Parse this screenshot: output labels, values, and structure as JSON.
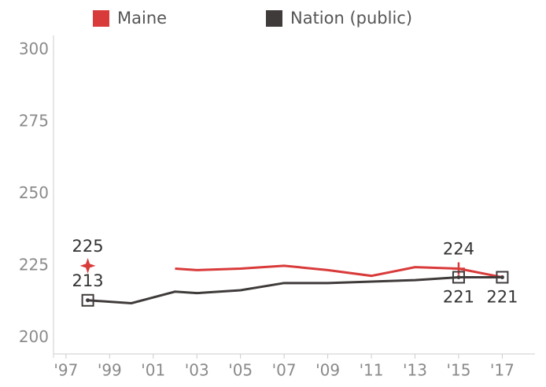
{
  "chart_data": {
    "type": "line",
    "x": [
      1998,
      2000,
      2002,
      2003,
      2005,
      2007,
      2009,
      2011,
      2013,
      2015,
      2017
    ],
    "series": [
      {
        "name": "Maine",
        "color": "#d93a3a",
        "values": [
          225,
          null,
          224,
          223.5,
          224,
          225,
          223.5,
          221.5,
          224.5,
          224,
          221
        ],
        "value_labels": [
          "225",
          null,
          null,
          null,
          null,
          null,
          null,
          null,
          null,
          "224",
          null
        ]
      },
      {
        "name": "Nation (public)",
        "color": "#403b3b",
        "values": [
          213,
          212,
          216,
          215.5,
          216.5,
          219,
          219,
          219.5,
          220,
          221,
          221
        ],
        "value_labels": [
          "213",
          null,
          null,
          null,
          null,
          null,
          null,
          null,
          null,
          "221",
          "221"
        ]
      }
    ],
    "xlim": [
      1996.5,
      2018.5
    ],
    "xticks": [
      {
        "value": 1997,
        "label": "'97"
      },
      {
        "value": 1999,
        "label": "'99"
      },
      {
        "value": 2001,
        "label": "'01"
      },
      {
        "value": 2003,
        "label": "'03"
      },
      {
        "value": 2005,
        "label": "'05"
      },
      {
        "value": 2007,
        "label": "'07"
      },
      {
        "value": 2009,
        "label": "'09"
      },
      {
        "value": 2011,
        "label": "'11"
      },
      {
        "value": 2013,
        "label": "'13"
      },
      {
        "value": 2015,
        "label": "'15"
      },
      {
        "value": 2017,
        "label": "'17"
      }
    ],
    "ylim": [
      193,
      305
    ],
    "yticks": [
      200,
      225,
      250,
      275,
      300
    ],
    "grid": false,
    "legend": "top"
  }
}
